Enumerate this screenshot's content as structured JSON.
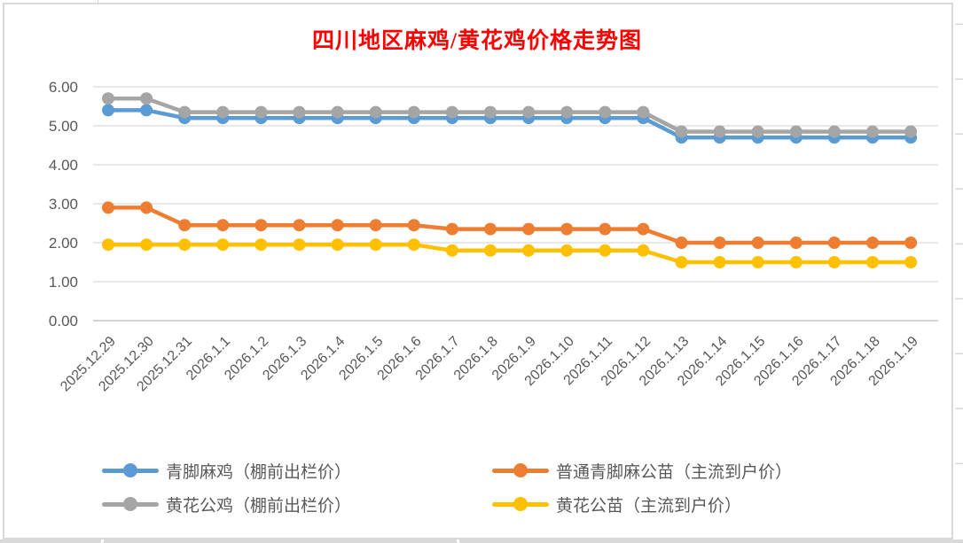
{
  "chart_data": {
    "type": "line",
    "title": "四川地区麻鸡/黄花鸡价格走势图",
    "title_color": "#FF0000",
    "x": [
      "2025.12.29",
      "2025.12.30",
      "2025.12.31",
      "2026.1.1",
      "2026.1.2",
      "2026.1.3",
      "2026.1.4",
      "2026.1.5",
      "2026.1.6",
      "2026.1.7",
      "2026.1.8",
      "2026.1.9",
      "2026.1.10",
      "2026.1.11",
      "2026.1.12",
      "2026.1.13",
      "2026.1.14",
      "2026.1.15",
      "2026.1.16",
      "2026.1.17",
      "2026.1.18",
      "2026.1.19"
    ],
    "series": [
      {
        "name": "青脚麻鸡（棚前出栏价）",
        "color": "#5B9BD5",
        "values": [
          5.4,
          5.4,
          5.2,
          5.2,
          5.2,
          5.2,
          5.2,
          5.2,
          5.2,
          5.2,
          5.2,
          5.2,
          5.2,
          5.2,
          5.2,
          4.7,
          4.7,
          4.7,
          4.7,
          4.7,
          4.7,
          4.7
        ]
      },
      {
        "name": "普通青脚麻公苗（主流到户价）",
        "color": "#ED7D31",
        "values": [
          2.9,
          2.9,
          2.45,
          2.45,
          2.45,
          2.45,
          2.45,
          2.45,
          2.45,
          2.35,
          2.35,
          2.35,
          2.35,
          2.35,
          2.35,
          2.0,
          2.0,
          2.0,
          2.0,
          2.0,
          2.0,
          2.0
        ]
      },
      {
        "name": "黄花公鸡（棚前出栏价）",
        "color": "#A5A5A5",
        "values": [
          5.7,
          5.7,
          5.35,
          5.35,
          5.35,
          5.35,
          5.35,
          5.35,
          5.35,
          5.35,
          5.35,
          5.35,
          5.35,
          5.35,
          5.35,
          4.85,
          4.85,
          4.85,
          4.85,
          4.85,
          4.85,
          4.85
        ]
      },
      {
        "name": "黄花公苗（主流到户价）",
        "color": "#FFC000",
        "values": [
          1.95,
          1.95,
          1.95,
          1.95,
          1.95,
          1.95,
          1.95,
          1.95,
          1.95,
          1.8,
          1.8,
          1.8,
          1.8,
          1.8,
          1.8,
          1.5,
          1.5,
          1.5,
          1.5,
          1.5,
          1.5,
          1.5
        ]
      }
    ],
    "ylim": [
      0,
      6
    ],
    "y_ticks": [
      "0.00",
      "1.00",
      "2.00",
      "3.00",
      "4.00",
      "5.00",
      "6.00"
    ],
    "grid": true,
    "legend_position": "bottom",
    "marker": "circle",
    "axis_text_color": "#595959",
    "gridline_color": "#D9D9D9"
  }
}
